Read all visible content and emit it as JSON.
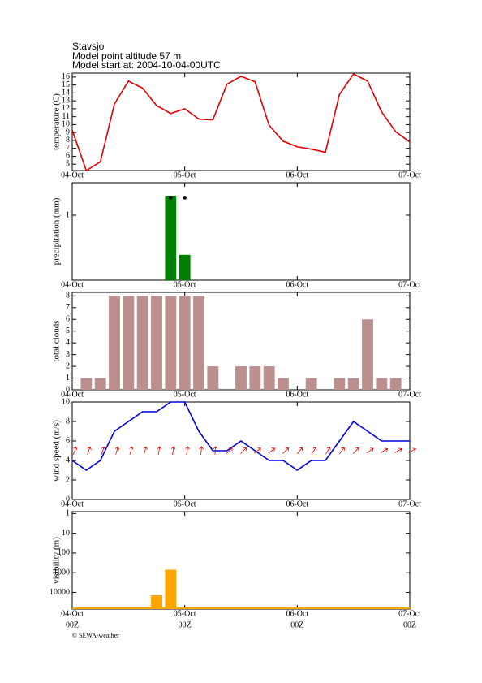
{
  "header": {
    "title": "Stavsjo",
    "altitude": "Model point altitude  57 m",
    "start": "Model start at: 2004-10-04-00UTC"
  },
  "chart_data": [
    {
      "type": "line",
      "ylabel": "temperature (C)",
      "x": [
        0,
        3,
        6,
        9,
        12,
        15,
        18,
        21,
        24,
        27,
        30,
        33,
        36,
        39,
        42,
        45,
        48,
        51,
        54,
        57,
        60,
        63,
        66,
        69,
        72
      ],
      "series": [
        {
          "color": "#e00000",
          "values": [
            9.3,
            4.2,
            5.3,
            12.6,
            15.5,
            14.6,
            12.4,
            11.4,
            12.0,
            10.7,
            10.6,
            15.1,
            16.1,
            15.4,
            9.9,
            7.9,
            7.2,
            6.9,
            6.5,
            13.8,
            16.4,
            15.5,
            11.6,
            9.1,
            7.8
          ]
        }
      ],
      "xlim": [
        0,
        72
      ],
      "xticks": [
        {
          "value": 0,
          "label": "04-Oct"
        },
        {
          "value": 24,
          "label": "05-Oct"
        },
        {
          "value": 48,
          "label": "06-Oct"
        },
        {
          "value": 72,
          "label": "07-Oct"
        }
      ],
      "ylim": [
        4.2,
        16.5
      ],
      "yticks": [
        5,
        6,
        7,
        8,
        9,
        10,
        11,
        12,
        13,
        14,
        15,
        16
      ]
    },
    {
      "type": "bar",
      "ylabel": "precipitation (mm)",
      "x": [
        21,
        24
      ],
      "series": [
        {
          "style": "bar",
          "color": "#008000",
          "values": [
            1.3,
            0.39
          ]
        },
        {
          "style": "dot",
          "color": "#000000",
          "values": [
            1.27,
            1.27
          ]
        }
      ],
      "xlim": [
        0,
        72
      ],
      "xticks": [
        {
          "value": 0,
          "label": "04-Oct"
        },
        {
          "value": 24,
          "label": "05-Oct"
        },
        {
          "value": 48,
          "label": "06-Oct"
        },
        {
          "value": 72,
          "label": "07-Oct"
        }
      ],
      "ylim": [
        0,
        1.5
      ],
      "yticks": [
        1
      ]
    },
    {
      "type": "bar",
      "ylabel": "total clouds",
      "x": [
        3,
        6,
        9,
        12,
        15,
        18,
        21,
        24,
        27,
        30,
        33,
        36,
        39,
        42,
        45,
        48,
        51,
        54,
        57,
        60,
        63,
        66,
        69
      ],
      "series": [
        {
          "style": "bar",
          "color": "#bc8f8f",
          "values": [
            1,
            1,
            8,
            8,
            8,
            8,
            8,
            8,
            8,
            2,
            0,
            2,
            2,
            2,
            1,
            0,
            1,
            0,
            1,
            1,
            6,
            1,
            1
          ]
        }
      ],
      "xlim": [
        0,
        72
      ],
      "xticks": [
        {
          "value": 0,
          "label": "04-Oct"
        },
        {
          "value": 24,
          "label": "05-Oct"
        },
        {
          "value": 48,
          "label": "06-Oct"
        },
        {
          "value": 72,
          "label": "07-Oct"
        }
      ],
      "ylim": [
        0,
        8.3
      ],
      "yticks": [
        0,
        1,
        2,
        3,
        4,
        5,
        6,
        7,
        8
      ]
    },
    {
      "type": "line",
      "ylabel": "wind speed (m/s)",
      "x": [
        0,
        3,
        6,
        9,
        12,
        15,
        18,
        21,
        24,
        27,
        30,
        33,
        36,
        39,
        42,
        45,
        48,
        51,
        54,
        57,
        60,
        63,
        66,
        69,
        72
      ],
      "series": [
        {
          "color": "#0000e0",
          "values": [
            4,
            3,
            4,
            7,
            8,
            9,
            9,
            10,
            10,
            7,
            5,
            5,
            6,
            5,
            4,
            4,
            3,
            4,
            4,
            6,
            8,
            7,
            6,
            6,
            6
          ]
        }
      ],
      "direction": {
        "color": "#e00000",
        "values": [
          20,
          20,
          20,
          15,
          15,
          15,
          10,
          10,
          10,
          5,
          5,
          45,
          45,
          50,
          50,
          45,
          40,
          35,
          30,
          35,
          45,
          55,
          60,
          60,
          60
        ]
      },
      "xlim": [
        0,
        72
      ],
      "xticks": [
        {
          "value": 0,
          "label": "04-Oct"
        },
        {
          "value": 24,
          "label": "05-Oct"
        },
        {
          "value": 48,
          "label": "06-Oct"
        },
        {
          "value": 72,
          "label": "07-Oct"
        }
      ],
      "ylim": [
        0,
        10
      ],
      "yticks": [
        0,
        2,
        4,
        6,
        8,
        10
      ]
    },
    {
      "type": "bar",
      "ylabel": "visibility (m)",
      "log": true,
      "x": [
        18,
        21
      ],
      "series": [
        {
          "style": "bar",
          "color": "#ffa500",
          "values": [
            14000,
            700
          ]
        }
      ],
      "xlim": [
        0,
        72
      ],
      "xticks": [
        {
          "value": 0,
          "label": "04-Oct"
        },
        {
          "value": 24,
          "label": "05-Oct"
        },
        {
          "value": 48,
          "label": "06-Oct"
        },
        {
          "value": 72,
          "label": "07-Oct"
        }
      ],
      "ylim": [
        70000,
        0.8
      ],
      "yticks": [
        1,
        10,
        100,
        1000,
        10000
      ]
    }
  ],
  "footer": {
    "time_labels": [
      "00Z",
      "00Z",
      "00Z",
      "00Z"
    ],
    "copyright": "© SEWA-weather"
  }
}
